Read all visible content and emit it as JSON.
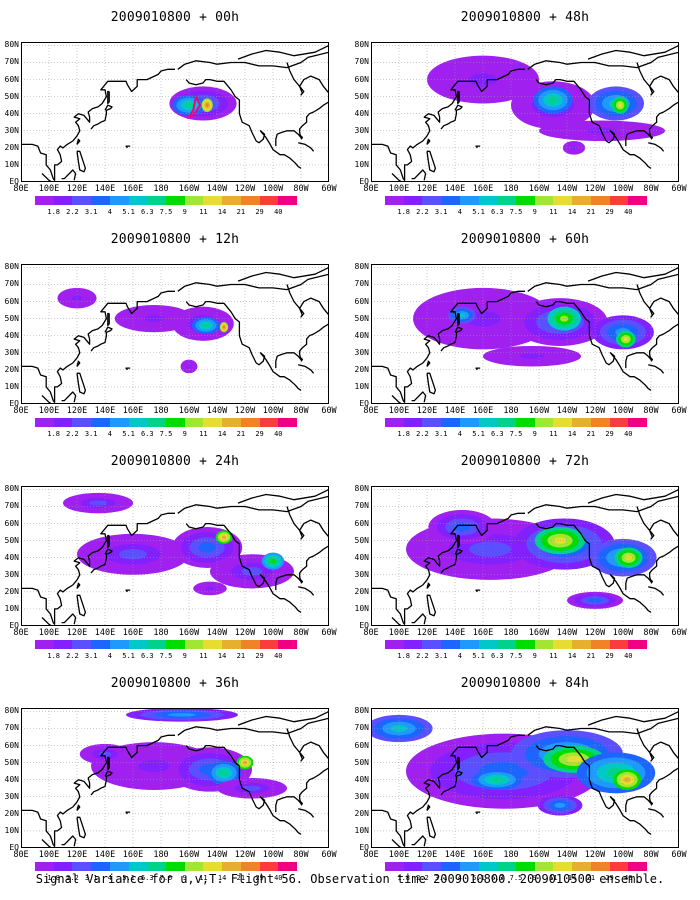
{
  "panels": [
    {
      "title": "2009010800 + 00h",
      "lead": "00h",
      "intensity": 0.15
    },
    {
      "title": "2009010800 + 48h",
      "lead": "48h",
      "intensity": 0.55
    },
    {
      "title": "2009010800 + 12h",
      "lead": "12h",
      "intensity": 0.28
    },
    {
      "title": "2009010800 + 60h",
      "lead": "60h",
      "intensity": 0.7
    },
    {
      "title": "2009010800 + 24h",
      "lead": "24h",
      "intensity": 0.42
    },
    {
      "title": "2009010800 + 72h",
      "lead": "72h",
      "intensity": 0.82
    },
    {
      "title": "2009010800 + 36h",
      "lead": "36h",
      "intensity": 0.5
    },
    {
      "title": "2009010800 + 84h",
      "lead": "84h",
      "intensity": 0.95
    }
  ],
  "lat_labels": [
    "80N",
    "70N",
    "60N",
    "50N",
    "40N",
    "30N",
    "20N",
    "10N",
    "EQ"
  ],
  "lon_labels": [
    "80E",
    "100E",
    "120E",
    "140E",
    "160E",
    "180",
    "160W",
    "140W",
    "120W",
    "100W",
    "80W",
    "60W"
  ],
  "colorbar": {
    "colors": [
      "#a020f0",
      "#8220ff",
      "#5a50ff",
      "#1e64ff",
      "#1e9aff",
      "#00c8c8",
      "#00d28c",
      "#00dc00",
      "#a0e632",
      "#e6dc32",
      "#e6af2d",
      "#f08228",
      "#fa3c3c",
      "#f00082"
    ],
    "labels": [
      "1.8",
      "2.2",
      "3.1",
      "4",
      "5.1",
      "6.3",
      "7.5",
      "9",
      "11",
      "14",
      "21",
      "29",
      "40"
    ]
  },
  "footer": "Signal Variance for u,v,T. Flight 56. Observation time 2009010800. 2009010500 ensemble."
}
